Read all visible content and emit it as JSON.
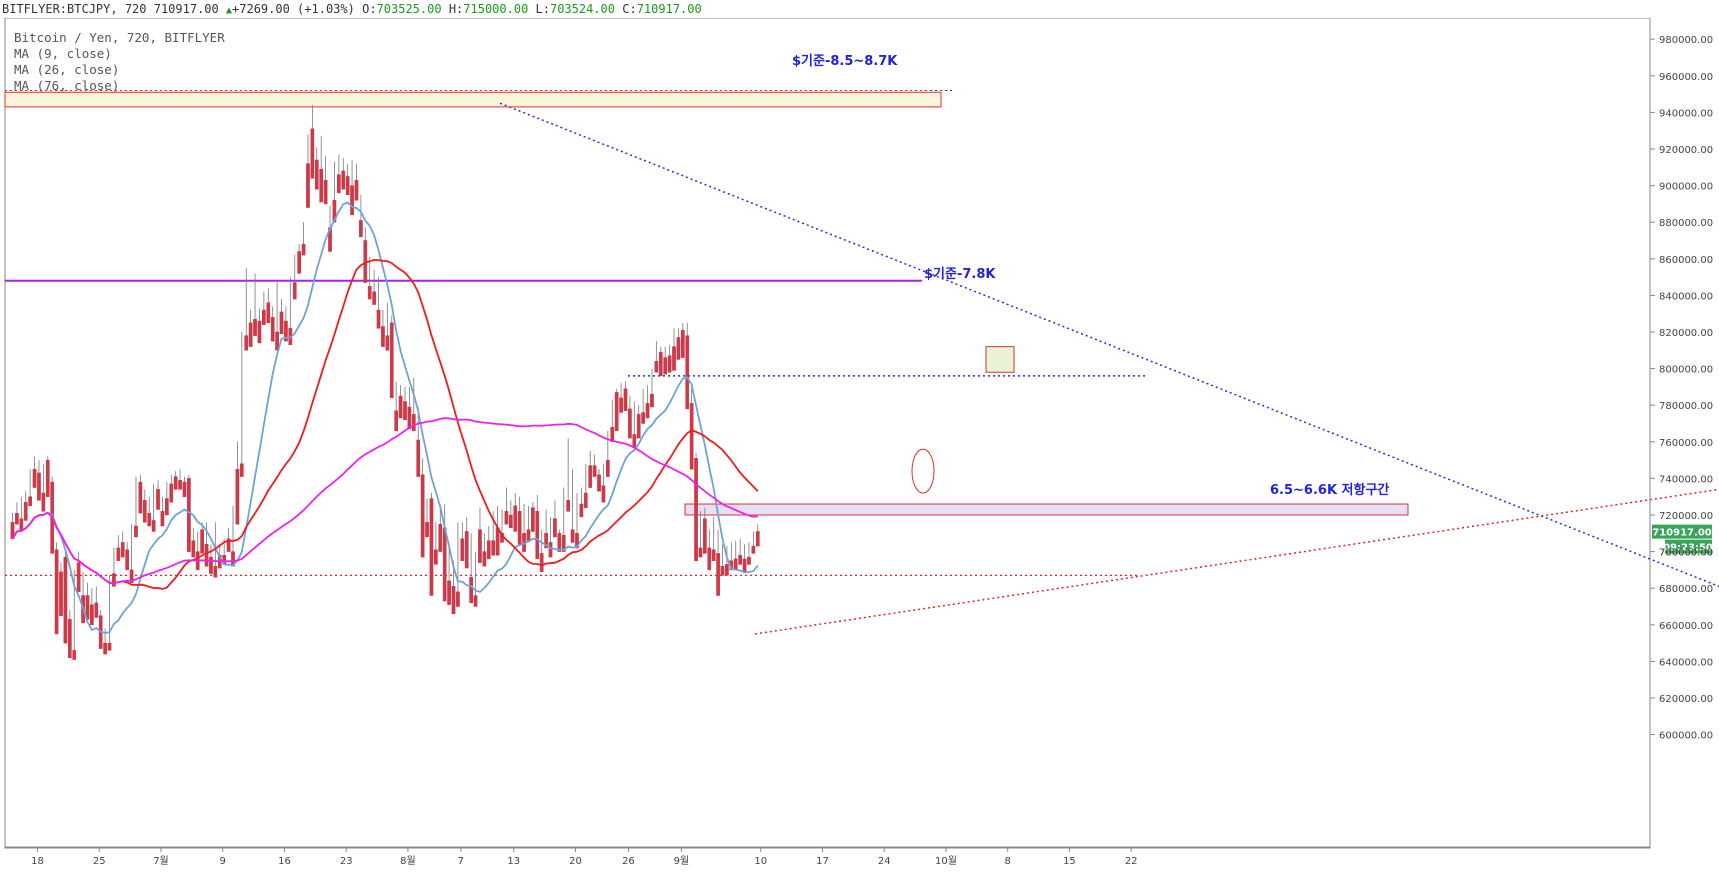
{
  "header": {
    "symbol": "BITFLYER:BTCJPY, 720",
    "last": "710917.00",
    "change": "+7269.00 (+1.03%)",
    "o_label": "O:",
    "o": "703525.00",
    "h_label": "H:",
    "h": "715000.00",
    "l_label": "L:",
    "l": "703524.00",
    "c_label": "C:",
    "c": "710917.00"
  },
  "legend": {
    "title": "Bitcoin / Yen, 720, BITFLYER",
    "ma1": "MA (9, close)",
    "ma2": "MA (26, close)",
    "ma3": "MA (76, close)"
  },
  "colors": {
    "up": "#4a8a5a",
    "down": "#cc3a4a",
    "ma9": "#6fa3d6",
    "ma26": "#ee1c1c",
    "ma76": "#ee22ee",
    "trend_blue": "#2233cc",
    "trend_red": "#ee2222",
    "resistance_line": "#aa22dd"
  },
  "chart_data": {
    "type": "candlestick",
    "y_ticks": [
      600000,
      620000,
      640000,
      660000,
      680000,
      700000,
      720000,
      740000,
      760000,
      780000,
      800000,
      820000,
      840000,
      860000,
      880000,
      900000,
      920000,
      940000,
      960000,
      980000
    ],
    "y_tick_labels": [
      "600000.00",
      "620000.00",
      "640000.00",
      "660000.00",
      "680000.00",
      "700000.00",
      "720000.00",
      "740000.00",
      "760000.00",
      "780000.00",
      "800000.00",
      "820000.00",
      "840000.00",
      "860000.00",
      "880000.00",
      "900000.00",
      "920000.00",
      "940000.00",
      "960000.00",
      "980000.00"
    ],
    "ylim": [
      580000,
      990000
    ],
    "x_ticks": [
      "18",
      "25",
      "7월",
      "9",
      "16",
      "23",
      "8월",
      "7",
      "13",
      "20",
      "26",
      "9월",
      "10",
      "17",
      "24",
      "10월",
      "8",
      "15",
      "22"
    ],
    "x_tick_pos": [
      0,
      7,
      14,
      21,
      28,
      35,
      42,
      48,
      54,
      61,
      67,
      73,
      82,
      89,
      96,
      103,
      110,
      117,
      124
    ],
    "xlim": [
      -2.5,
      129
    ],
    "candles": [
      [
        716,
        721,
        712,
        707
      ],
      [
        721,
        727,
        718,
        715
      ],
      [
        718,
        730,
        716,
        712
      ],
      [
        727,
        733,
        720,
        717
      ],
      [
        730,
        745,
        728,
        725
      ],
      [
        745,
        752,
        743,
        735
      ],
      [
        743,
        750,
        732,
        728
      ],
      [
        732,
        748,
        728,
        722
      ],
      [
        750,
        752,
        738,
        730
      ],
      [
        738,
        741,
        701,
        699
      ],
      [
        701,
        705,
        669,
        655
      ],
      [
        689,
        694,
        673,
        665
      ],
      [
        697,
        700,
        663,
        650
      ],
      [
        663,
        668,
        646,
        642
      ],
      [
        646,
        690,
        644,
        641
      ],
      [
        694,
        700,
        680,
        678
      ],
      [
        676,
        689,
        672,
        661
      ],
      [
        676,
        683,
        667,
        663
      ],
      [
        671,
        680,
        665,
        660
      ],
      [
        672,
        681,
        668,
        664
      ],
      [
        665,
        668,
        650,
        647
      ],
      [
        650,
        658,
        646,
        644
      ],
      [
        650,
        687,
        648,
        646
      ],
      [
        688,
        702,
        684,
        681
      ],
      [
        702,
        709,
        698,
        695
      ],
      [
        705,
        711,
        699,
        697
      ],
      [
        701,
        705,
        692,
        690
      ],
      [
        690,
        715,
        687,
        683
      ],
      [
        714,
        741,
        711,
        708
      ],
      [
        738,
        742,
        725,
        721
      ],
      [
        728,
        734,
        719,
        716
      ],
      [
        721,
        730,
        717,
        714
      ],
      [
        717,
        737,
        715,
        711
      ],
      [
        734,
        739,
        726,
        723
      ],
      [
        722,
        730,
        717,
        714
      ],
      [
        729,
        738,
        725,
        720
      ],
      [
        737,
        742,
        730,
        727
      ],
      [
        741,
        744,
        737,
        734
      ],
      [
        739,
        745,
        737,
        734
      ],
      [
        738,
        741,
        733,
        730
      ],
      [
        740,
        742,
        704,
        700
      ],
      [
        706,
        713,
        700,
        697
      ],
      [
        700,
        711,
        694,
        690
      ],
      [
        712,
        716,
        703,
        699
      ],
      [
        704,
        716,
        695,
        692
      ],
      [
        697,
        704,
        690,
        688
      ],
      [
        692,
        716,
        689,
        686
      ],
      [
        698,
        704,
        694,
        691
      ],
      [
        698,
        707,
        696,
        693
      ],
      [
        707,
        713,
        702,
        700
      ],
      [
        700,
        725,
        696,
        692
      ],
      [
        745,
        760,
        718,
        715
      ],
      [
        748,
        820,
        744,
        741
      ],
      [
        818,
        855,
        813,
        810
      ],
      [
        825,
        832,
        816,
        812
      ],
      [
        827,
        852,
        822,
        818
      ],
      [
        826,
        833,
        820,
        814
      ],
      [
        832,
        842,
        828,
        824
      ],
      [
        836,
        844,
        830,
        825
      ],
      [
        828,
        834,
        818,
        815
      ],
      [
        820,
        848,
        814,
        810
      ],
      [
        831,
        838,
        823,
        819
      ],
      [
        826,
        834,
        820,
        815
      ],
      [
        822,
        850,
        820,
        813
      ],
      [
        847,
        862,
        843,
        838
      ],
      [
        864,
        868,
        856,
        852
      ],
      [
        868,
        880,
        866,
        862
      ],
      [
        912,
        928,
        899,
        888
      ],
      [
        931,
        944,
        913,
        904
      ],
      [
        914,
        921,
        904,
        898
      ],
      [
        909,
        927,
        896,
        891
      ],
      [
        903,
        916,
        895,
        890
      ],
      [
        877,
        889,
        870,
        864
      ],
      [
        892,
        913,
        885,
        880
      ],
      [
        906,
        917,
        900,
        896
      ],
      [
        908,
        915,
        902,
        898
      ],
      [
        905,
        912,
        899,
        895
      ],
      [
        900,
        914,
        890,
        884
      ],
      [
        903,
        912,
        896,
        892
      ],
      [
        881,
        895,
        876,
        872
      ],
      [
        870,
        877,
        851,
        847
      ],
      [
        845,
        861,
        840,
        838
      ],
      [
        842,
        854,
        838,
        835
      ],
      [
        832,
        850,
        828,
        822
      ],
      [
        823,
        832,
        817,
        812
      ],
      [
        818,
        836,
        814,
        810
      ],
      [
        825,
        829,
        787,
        784
      ],
      [
        777,
        793,
        770,
        766
      ],
      [
        785,
        791,
        777,
        773
      ],
      [
        782,
        790,
        776,
        772
      ],
      [
        779,
        790,
        774,
        767
      ],
      [
        775,
        795,
        770,
        766
      ],
      [
        761,
        779,
        743,
        741
      ],
      [
        742,
        751,
        711,
        697
      ],
      [
        716,
        729,
        712,
        708
      ],
      [
        729,
        732,
        700,
        676
      ],
      [
        701,
        716,
        697,
        693
      ],
      [
        715,
        725,
        705,
        700
      ],
      [
        713,
        726,
        680,
        673
      ],
      [
        684,
        705,
        680,
        671
      ],
      [
        681,
        695,
        675,
        666
      ],
      [
        678,
        716,
        673,
        670
      ],
      [
        707,
        716,
        700,
        695
      ],
      [
        711,
        719,
        699,
        691
      ],
      [
        686,
        710,
        681,
        672
      ],
      [
        676,
        700,
        673,
        670
      ],
      [
        712,
        724,
        697,
        694
      ],
      [
        700,
        710,
        695,
        692
      ],
      [
        706,
        714,
        699,
        696
      ],
      [
        706,
        722,
        701,
        698
      ],
      [
        713,
        725,
        701,
        698
      ],
      [
        710,
        723,
        707,
        705
      ],
      [
        722,
        735,
        717,
        715
      ],
      [
        720,
        728,
        716,
        713
      ],
      [
        725,
        732,
        714,
        711
      ],
      [
        722,
        730,
        707,
        704
      ],
      [
        710,
        726,
        704,
        700
      ],
      [
        712,
        725,
        710,
        706
      ],
      [
        724,
        727,
        714,
        711
      ],
      [
        722,
        731,
        698,
        696
      ],
      [
        699,
        712,
        693,
        689
      ],
      [
        710,
        723,
        705,
        702
      ],
      [
        705,
        719,
        699,
        697
      ],
      [
        718,
        728,
        711,
        708
      ],
      [
        710,
        712,
        704,
        700
      ],
      [
        709,
        735,
        705,
        700
      ],
      [
        728,
        762,
        726,
        722
      ],
      [
        712,
        745,
        709,
        705
      ],
      [
        710,
        732,
        704,
        702
      ],
      [
        726,
        735,
        722,
        719
      ],
      [
        732,
        748,
        728,
        724
      ],
      [
        747,
        755,
        739,
        735
      ],
      [
        747,
        753,
        744,
        741
      ],
      [
        742,
        745,
        736,
        733
      ],
      [
        736,
        748,
        730,
        727
      ],
      [
        750,
        766,
        745,
        741
      ],
      [
        768,
        783,
        764,
        760
      ],
      [
        787,
        789,
        770,
        766
      ],
      [
        784,
        792,
        778,
        776
      ],
      [
        789,
        793,
        781,
        777
      ],
      [
        778,
        785,
        765,
        762
      ],
      [
        764,
        782,
        760,
        757
      ],
      [
        775,
        780,
        765,
        762
      ],
      [
        776,
        789,
        772,
        770
      ],
      [
        781,
        791,
        776,
        773
      ],
      [
        786,
        800,
        782,
        779
      ],
      [
        804,
        815,
        801,
        798
      ],
      [
        809,
        812,
        799,
        796
      ],
      [
        806,
        812,
        800,
        797
      ],
      [
        807,
        813,
        801,
        798
      ],
      [
        812,
        822,
        803,
        799
      ],
      [
        817,
        822,
        809,
        805
      ],
      [
        821,
        825,
        812,
        806
      ],
      [
        818,
        825,
        780,
        778
      ],
      [
        781,
        790,
        748,
        745
      ],
      [
        751,
        754,
        701,
        695
      ],
      [
        702,
        722,
        699,
        697
      ],
      [
        718,
        724,
        702,
        699
      ],
      [
        702,
        712,
        694,
        690
      ],
      [
        701,
        719,
        698,
        695
      ],
      [
        699,
        712,
        680,
        676
      ],
      [
        692,
        704,
        690,
        687
      ],
      [
        693,
        703,
        690,
        687
      ],
      [
        695,
        705,
        693,
        690
      ],
      [
        696,
        706,
        692,
        690
      ],
      [
        698,
        707,
        695,
        693
      ],
      [
        696,
        704,
        692,
        689
      ],
      [
        697,
        705,
        695,
        693
      ],
      [
        703,
        711,
        701,
        699
      ],
      [
        711,
        715,
        705,
        703
      ]
    ],
    "ma_series": [
      {
        "name": "MA (9, close)"
      },
      {
        "name": "MA (26, close)"
      },
      {
        "name": "MA (76, close)"
      }
    ],
    "annotations": {
      "label1": "$기준-8.5~8.7K",
      "label2": "$기준-7.8K",
      "label3": "6.5~6.6K 저항구간"
    },
    "current_price_tag": "710917.00",
    "countdown_tag": "09:23:50",
    "hidden_tag": "700000.00"
  }
}
